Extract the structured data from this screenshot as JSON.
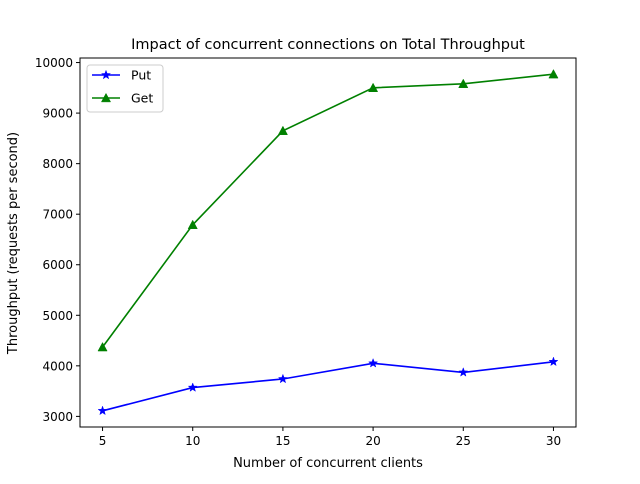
{
  "chart_data": {
    "type": "line",
    "title": "Impact of concurrent connections on Total Throughput",
    "xlabel": "Number of concurrent clients",
    "ylabel": "Throughput (requests per second)",
    "x": [
      5,
      10,
      15,
      20,
      25,
      30
    ],
    "xlim": [
      3.75,
      31.25
    ],
    "ylim": [
      2790,
      10090
    ],
    "xticks": [
      5,
      10,
      15,
      20,
      25,
      30
    ],
    "yticks": [
      3000,
      4000,
      5000,
      6000,
      7000,
      8000,
      9000,
      10000
    ],
    "grid": false,
    "legend_position": "top-left",
    "series": [
      {
        "name": "Put",
        "color": "#0000ff",
        "marker": "star",
        "values": [
          3110,
          3570,
          3740,
          4050,
          3870,
          4080
        ]
      },
      {
        "name": "Get",
        "color": "#008000",
        "marker": "triangle",
        "values": [
          4370,
          6790,
          8650,
          9500,
          9580,
          9770
        ]
      }
    ]
  }
}
